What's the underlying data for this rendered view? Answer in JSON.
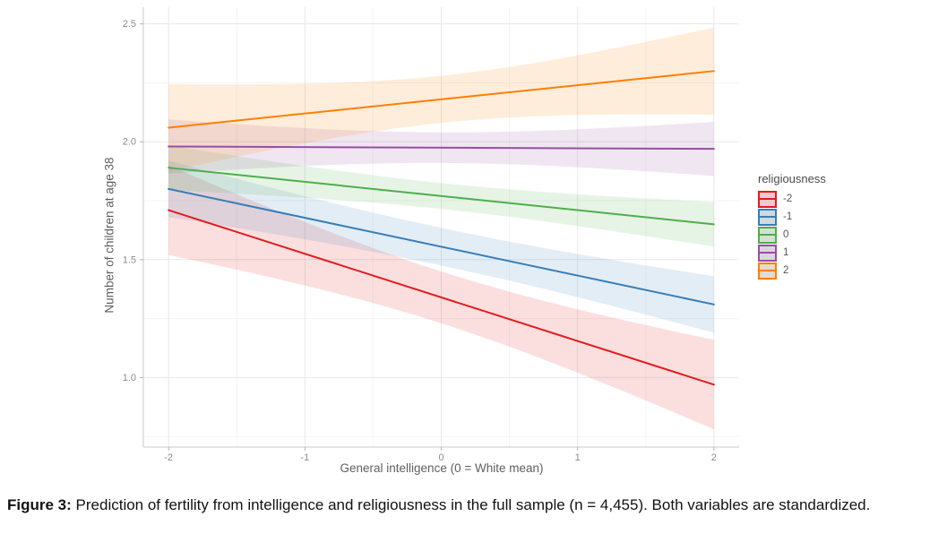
{
  "figure": {
    "caption_label": "Figure 3:",
    "caption_text": "Prediction of fertility from intelligence and religiousness in the full sample (n = 4,455). Both variables are standardized."
  },
  "chart_data": {
    "type": "line",
    "title": "",
    "xlabel": "General intelligence (0 = White mean)",
    "ylabel": "Number of children at age 38",
    "legend_title": "religiousness",
    "legend_position": "right",
    "grid": true,
    "xlim": [
      -2.185,
      2.185
    ],
    "ylim": [
      0.705,
      2.571
    ],
    "x_ticks": [
      -2,
      -1,
      0,
      1,
      2
    ],
    "x_tick_labels": [
      "-2",
      "-1",
      "0",
      "1",
      "2"
    ],
    "y_ticks": [
      1.0,
      1.5,
      2.0,
      2.5
    ],
    "y_tick_labels": [
      "1.0",
      "1.5",
      "2.0",
      "2.5"
    ],
    "x_minor_ticks": [
      -1.5,
      -0.5,
      0.5,
      1.5
    ],
    "y_minor_ticks": [
      0.75,
      1.25,
      1.75,
      2.25
    ],
    "x_endpoints": [
      -2,
      2
    ],
    "band_opacity": 0.14,
    "series": [
      {
        "name": "-2",
        "color": "#E41A1C",
        "y_endpoints": [
          1.71,
          0.97
        ],
        "ci_half_center": 0.11,
        "ci_half_edge": 0.19
      },
      {
        "name": "-1",
        "color": "#377EB8",
        "y_endpoints": [
          1.8,
          1.31
        ],
        "ci_half_center": 0.08,
        "ci_half_edge": 0.12
      },
      {
        "name": "0",
        "color": "#4DAF4A",
        "y_endpoints": [
          1.89,
          1.65
        ],
        "ci_half_center": 0.055,
        "ci_half_edge": 0.095
      },
      {
        "name": "1",
        "color": "#984EA3",
        "y_endpoints": [
          1.98,
          1.97
        ],
        "ci_half_center": 0.065,
        "ci_half_edge": 0.115
      },
      {
        "name": "2",
        "color": "#FF7F00",
        "y_endpoints": [
          2.06,
          2.3
        ],
        "ci_half_center": 0.1,
        "ci_half_edge": 0.185
      }
    ],
    "style": {
      "grid_major": "#e8e8e8",
      "grid_minor": "#f4f4f4",
      "axis_line": "#c9c9c9",
      "tick_mark": "#b3b3b3",
      "tick_label": "#8a8a8a",
      "key_fill": "#e8e8e8"
    }
  }
}
